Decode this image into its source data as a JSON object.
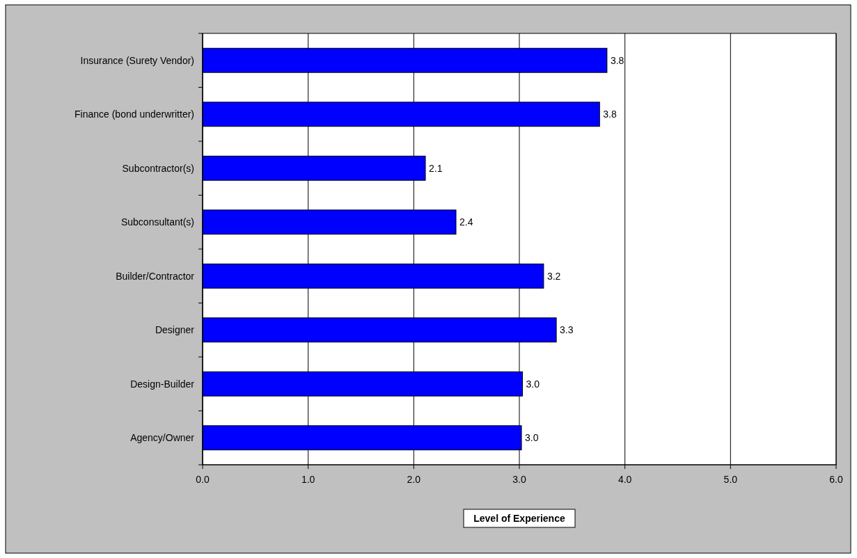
{
  "chart_data": {
    "type": "bar",
    "orientation": "horizontal",
    "xlabel": "Level of Experience",
    "categories": [
      "Insurance (Surety Vendor)",
      "Finance (bond underwritter)",
      "Subcontractor(s)",
      "Subconsultant(s)",
      "Builder/Contractor",
      "Designer",
      "Design-Builder",
      "Agency/Owner"
    ],
    "values": [
      3.83,
      3.76,
      2.11,
      2.4,
      3.23,
      3.35,
      3.03,
      3.02
    ],
    "value_labels": [
      "3.8",
      "3.8",
      "2.1",
      "2.4",
      "3.2",
      "3.3",
      "3.0",
      "3.0"
    ],
    "color": "#0000ff",
    "xlim": [
      0,
      6
    ],
    "xticks": [
      {
        "value": 0,
        "label": "0.0"
      },
      {
        "value": 1,
        "label": "1.0"
      },
      {
        "value": 2,
        "label": "2.0"
      },
      {
        "value": 3,
        "label": "3.0"
      },
      {
        "value": 4,
        "label": "4.0"
      },
      {
        "value": 5,
        "label": "5.0"
      },
      {
        "value": 6,
        "label": "6.0"
      }
    ],
    "grid": "x"
  }
}
